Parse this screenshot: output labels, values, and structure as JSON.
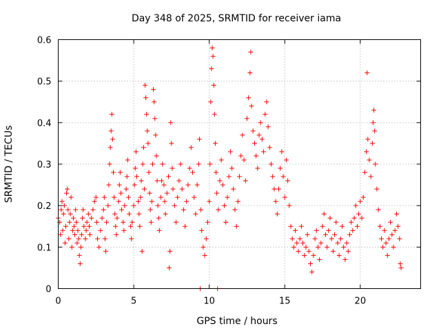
{
  "chart_data": {
    "type": "scatter",
    "title": "Day 348 of 2025, SRMTID for receiver iama",
    "xlabel": "GPS time / hours",
    "ylabel": "SRMTID / TECUs",
    "xlim": [
      0,
      24
    ],
    "ylim": [
      0,
      0.6
    ],
    "xticks": [
      0,
      5,
      10,
      15,
      20
    ],
    "xtick_labels": [
      "0",
      "5",
      "10",
      "15",
      "20"
    ],
    "yticks": [
      0,
      0.1,
      0.2,
      0.3,
      0.4,
      0.5,
      0.6
    ],
    "ytick_labels": [
      "0",
      "0.1",
      "0.2",
      "0.3",
      "0.4",
      "0.5",
      "0.6"
    ],
    "grid": true,
    "marker": "+",
    "color": "#ff0000",
    "series": [
      {
        "name": "SRMTID",
        "points": [
          [
            0.0,
            0.17
          ],
          [
            0.1,
            0.16
          ],
          [
            0.15,
            0.13
          ],
          [
            0.2,
            0.19
          ],
          [
            0.25,
            0.21
          ],
          [
            0.3,
            0.14
          ],
          [
            0.35,
            0.18
          ],
          [
            0.4,
            0.2
          ],
          [
            0.45,
            0.11
          ],
          [
            0.5,
            0.15
          ],
          [
            0.55,
            0.23
          ],
          [
            0.6,
            0.24
          ],
          [
            0.65,
            0.19
          ],
          [
            0.7,
            0.12
          ],
          [
            0.75,
            0.16
          ],
          [
            0.8,
            0.18
          ],
          [
            0.85,
            0.22
          ],
          [
            0.9,
            0.1
          ],
          [
            0.95,
            0.14
          ],
          [
            1.0,
            0.17
          ],
          [
            1.05,
            0.15
          ],
          [
            1.1,
            0.13
          ],
          [
            1.15,
            0.19
          ],
          [
            1.2,
            0.16
          ],
          [
            1.25,
            0.11
          ],
          [
            1.3,
            0.14
          ],
          [
            1.35,
            0.12
          ],
          [
            1.4,
            0.08
          ],
          [
            1.45,
            0.06
          ],
          [
            1.5,
            0.1
          ],
          [
            1.55,
            0.13
          ],
          [
            1.6,
            0.17
          ],
          [
            1.65,
            0.19
          ],
          [
            1.7,
            0.15
          ],
          [
            1.8,
            0.12
          ],
          [
            1.85,
            0.14
          ],
          [
            1.9,
            0.16
          ],
          [
            2.0,
            0.18
          ],
          [
            2.05,
            0.15
          ],
          [
            2.1,
            0.13
          ],
          [
            2.2,
            0.17
          ],
          [
            2.3,
            0.19
          ],
          [
            2.4,
            0.21
          ],
          [
            2.5,
            0.22
          ],
          [
            2.55,
            0.16
          ],
          [
            2.6,
            0.12
          ],
          [
            2.7,
            0.1
          ],
          [
            2.8,
            0.14
          ],
          [
            2.9,
            0.17
          ],
          [
            3.0,
            0.19
          ],
          [
            3.05,
            0.22
          ],
          [
            3.1,
            0.12
          ],
          [
            3.15,
            0.09
          ],
          [
            3.2,
            0.16
          ],
          [
            3.3,
            0.2
          ],
          [
            3.35,
            0.25
          ],
          [
            3.4,
            0.3
          ],
          [
            3.45,
            0.34
          ],
          [
            3.5,
            0.38
          ],
          [
            3.55,
            0.42
          ],
          [
            3.6,
            0.36
          ],
          [
            3.65,
            0.28
          ],
          [
            3.7,
            0.22
          ],
          [
            3.75,
            0.18
          ],
          [
            3.8,
            0.15
          ],
          [
            3.85,
            0.13
          ],
          [
            3.9,
            0.17
          ],
          [
            4.0,
            0.21
          ],
          [
            4.05,
            0.25
          ],
          [
            4.1,
            0.28
          ],
          [
            4.15,
            0.23
          ],
          [
            4.2,
            0.19
          ],
          [
            4.3,
            0.16
          ],
          [
            4.35,
            0.14
          ],
          [
            4.4,
            0.2
          ],
          [
            4.5,
            0.24
          ],
          [
            4.55,
            0.27
          ],
          [
            4.6,
            0.31
          ],
          [
            4.65,
            0.22
          ],
          [
            4.7,
            0.18
          ],
          [
            4.8,
            0.15
          ],
          [
            4.85,
            0.12
          ],
          [
            4.9,
            0.16
          ],
          [
            5.0,
            0.2
          ],
          [
            5.05,
            0.25
          ],
          [
            5.1,
            0.29
          ],
          [
            5.15,
            0.33
          ],
          [
            5.2,
            0.27
          ],
          [
            5.3,
            0.21
          ],
          [
            5.35,
            0.18
          ],
          [
            5.4,
            0.15
          ],
          [
            5.45,
            0.22
          ],
          [
            5.5,
            0.26
          ],
          [
            5.55,
            0.09
          ],
          [
            5.6,
            0.3
          ],
          [
            5.65,
            0.34
          ],
          [
            5.7,
            0.24
          ],
          [
            5.75,
            0.49
          ],
          [
            5.8,
            0.46
          ],
          [
            5.85,
            0.42
          ],
          [
            5.9,
            0.38
          ],
          [
            5.95,
            0.35
          ],
          [
            6.0,
            0.28
          ],
          [
            6.05,
            0.23
          ],
          [
            6.1,
            0.19
          ],
          [
            6.15,
            0.16
          ],
          [
            6.2,
            0.21
          ],
          [
            6.25,
            0.3
          ],
          [
            6.3,
            0.48
          ],
          [
            6.35,
            0.45
          ],
          [
            6.4,
            0.41
          ],
          [
            6.45,
            0.37
          ],
          [
            6.5,
            0.32
          ],
          [
            6.55,
            0.26
          ],
          [
            6.6,
            0.2
          ],
          [
            6.65,
            0.17
          ],
          [
            6.7,
            0.14
          ],
          [
            6.8,
            0.22
          ],
          [
            6.85,
            0.26
          ],
          [
            6.9,
            0.3
          ],
          [
            7.0,
            0.25
          ],
          [
            7.05,
            0.21
          ],
          [
            7.1,
            0.18
          ],
          [
            7.2,
            0.23
          ],
          [
            7.3,
            0.27
          ],
          [
            7.35,
            0.05
          ],
          [
            7.4,
            0.09
          ],
          [
            7.45,
            0.4
          ],
          [
            7.5,
            0.35
          ],
          [
            7.55,
            0.29
          ],
          [
            7.6,
            0.24
          ],
          [
            7.7,
            0.2
          ],
          [
            7.8,
            0.16
          ],
          [
            7.9,
            0.22
          ],
          [
            8.0,
            0.26
          ],
          [
            8.1,
            0.3
          ],
          [
            8.2,
            0.24
          ],
          [
            8.3,
            0.19
          ],
          [
            8.4,
            0.15
          ],
          [
            8.5,
            0.21
          ],
          [
            8.6,
            0.25
          ],
          [
            8.7,
            0.29
          ],
          [
            8.8,
            0.34
          ],
          [
            8.9,
            0.28
          ],
          [
            9.0,
            0.22
          ],
          [
            9.1,
            0.18
          ],
          [
            9.2,
            0.25
          ],
          [
            9.3,
            0.3
          ],
          [
            9.35,
            0.36
          ],
          [
            9.4,
            0.0
          ],
          [
            9.45,
            0.19
          ],
          [
            9.5,
            0.14
          ],
          [
            9.6,
            0.1
          ],
          [
            9.7,
            0.08
          ],
          [
            9.8,
            0.12
          ],
          [
            9.9,
            0.16
          ],
          [
            10.0,
            0.21
          ],
          [
            10.05,
            0.3
          ],
          [
            10.1,
            0.45
          ],
          [
            10.15,
            0.53
          ],
          [
            10.2,
            0.58
          ],
          [
            10.25,
            0.56
          ],
          [
            10.3,
            0.49
          ],
          [
            10.35,
            0.42
          ],
          [
            10.4,
            0.35
          ],
          [
            10.45,
            0.28
          ],
          [
            10.5,
            0.23
          ],
          [
            10.55,
            0.0
          ],
          [
            10.6,
            0.19
          ],
          [
            10.7,
            0.26
          ],
          [
            10.8,
            0.31
          ],
          [
            10.9,
            0.25
          ],
          [
            11.0,
            0.2
          ],
          [
            11.1,
            0.16
          ],
          [
            11.2,
            0.22
          ],
          [
            11.3,
            0.27
          ],
          [
            11.4,
            0.33
          ],
          [
            11.5,
            0.29
          ],
          [
            11.6,
            0.24
          ],
          [
            11.7,
            0.19
          ],
          [
            11.8,
            0.15
          ],
          [
            11.9,
            0.21
          ],
          [
            12.0,
            0.27
          ],
          [
            12.1,
            0.32
          ],
          [
            12.2,
            0.37
          ],
          [
            12.3,
            0.31
          ],
          [
            12.4,
            0.26
          ],
          [
            12.5,
            0.41
          ],
          [
            12.6,
            0.46
          ],
          [
            12.7,
            0.52
          ],
          [
            12.75,
            0.57
          ],
          [
            12.8,
            0.44
          ],
          [
            12.9,
            0.38
          ],
          [
            13.0,
            0.35
          ],
          [
            13.1,
            0.32
          ],
          [
            13.2,
            0.29
          ],
          [
            13.3,
            0.37
          ],
          [
            13.4,
            0.4
          ],
          [
            13.5,
            0.36
          ],
          [
            13.6,
            0.33
          ],
          [
            13.7,
            0.42
          ],
          [
            13.8,
            0.45
          ],
          [
            13.9,
            0.39
          ],
          [
            14.0,
            0.34
          ],
          [
            14.1,
            0.3
          ],
          [
            14.2,
            0.27
          ],
          [
            14.3,
            0.24
          ],
          [
            14.4,
            0.21
          ],
          [
            14.5,
            0.18
          ],
          [
            14.6,
            0.24
          ],
          [
            14.7,
            0.29
          ],
          [
            14.8,
            0.33
          ],
          [
            14.9,
            0.27
          ],
          [
            15.0,
            0.22
          ],
          [
            15.1,
            0.31
          ],
          [
            15.2,
            0.26
          ],
          [
            15.3,
            0.2
          ],
          [
            15.4,
            0.15
          ],
          [
            15.5,
            0.12
          ],
          [
            15.6,
            0.1
          ],
          [
            15.7,
            0.14
          ],
          [
            15.8,
            0.11
          ],
          [
            15.9,
            0.09
          ],
          [
            16.0,
            0.12
          ],
          [
            16.1,
            0.15
          ],
          [
            16.2,
            0.11
          ],
          [
            16.3,
            0.08
          ],
          [
            16.4,
            0.1
          ],
          [
            16.5,
            0.13
          ],
          [
            16.6,
            0.09
          ],
          [
            16.7,
            0.06
          ],
          [
            16.8,
            0.04
          ],
          [
            16.9,
            0.08
          ],
          [
            17.0,
            0.12
          ],
          [
            17.1,
            0.14
          ],
          [
            17.2,
            0.1
          ],
          [
            17.3,
            0.07
          ],
          [
            17.4,
            0.11
          ],
          [
            17.5,
            0.15
          ],
          [
            17.6,
            0.18
          ],
          [
            17.7,
            0.13
          ],
          [
            17.8,
            0.1
          ],
          [
            17.9,
            0.14
          ],
          [
            18.0,
            0.17
          ],
          [
            18.1,
            0.12
          ],
          [
            18.2,
            0.09
          ],
          [
            18.3,
            0.13
          ],
          [
            18.4,
            0.16
          ],
          [
            18.5,
            0.11
          ],
          [
            18.6,
            0.08
          ],
          [
            18.7,
            0.12
          ],
          [
            18.8,
            0.15
          ],
          [
            18.9,
            0.1
          ],
          [
            19.0,
            0.07
          ],
          [
            19.1,
            0.11
          ],
          [
            19.2,
            0.09
          ],
          [
            19.3,
            0.13
          ],
          [
            19.4,
            0.16
          ],
          [
            19.5,
            0.14
          ],
          [
            19.6,
            0.17
          ],
          [
            19.7,
            0.2
          ],
          [
            19.8,
            0.15
          ],
          [
            19.9,
            0.18
          ],
          [
            20.0,
            0.21
          ],
          [
            20.1,
            0.17
          ],
          [
            20.2,
            0.22
          ],
          [
            20.3,
            0.28
          ],
          [
            20.4,
            0.33
          ],
          [
            20.45,
            0.52
          ],
          [
            20.5,
            0.36
          ],
          [
            20.6,
            0.31
          ],
          [
            20.7,
            0.27
          ],
          [
            20.8,
            0.35
          ],
          [
            20.85,
            0.4
          ],
          [
            20.9,
            0.43
          ],
          [
            20.95,
            0.38
          ],
          [
            21.0,
            0.3
          ],
          [
            21.1,
            0.24
          ],
          [
            21.2,
            0.19
          ],
          [
            21.3,
            0.15
          ],
          [
            21.4,
            0.12
          ],
          [
            21.5,
            0.1
          ],
          [
            21.6,
            0.14
          ],
          [
            21.7,
            0.11
          ],
          [
            21.8,
            0.08
          ],
          [
            21.9,
            0.12
          ],
          [
            22.0,
            0.16
          ],
          [
            22.1,
            0.13
          ],
          [
            22.2,
            0.1
          ],
          [
            22.3,
            0.14
          ],
          [
            22.4,
            0.18
          ],
          [
            22.5,
            0.15
          ],
          [
            22.6,
            0.12
          ],
          [
            22.65,
            0.06
          ],
          [
            22.7,
            0.05
          ]
        ]
      }
    ]
  }
}
